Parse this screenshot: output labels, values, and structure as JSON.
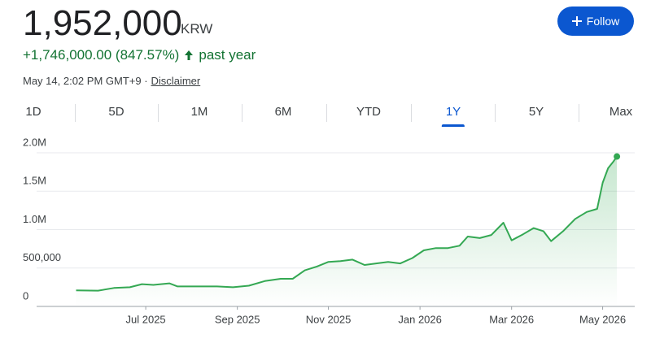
{
  "header": {
    "price": "1,952,000",
    "currency": "KRW",
    "change": "+1,746,000.00 (847.57%)",
    "period": "past year",
    "timestamp": "May 14, 2:02 PM GMT+9 ·",
    "disclaimer": "Disclaimer",
    "follow": "Follow"
  },
  "tabs": [
    "1D",
    "5D",
    "1M",
    "6M",
    "YTD",
    "1Y",
    "5Y",
    "Max"
  ],
  "selected_tab": "1Y",
  "chart_data": {
    "type": "line",
    "color": "#34a853",
    "x": [
      2025.373,
      2025.413,
      2025.442,
      2025.471,
      2025.493,
      2025.514,
      2025.543,
      2025.558,
      2025.601,
      2025.63,
      2025.659,
      2025.688,
      2025.717,
      2025.746,
      2025.768,
      2025.79,
      2025.812,
      2025.833,
      2025.855,
      2025.877,
      2025.899,
      2025.92,
      2025.942,
      2025.964,
      2025.986,
      2026.007,
      2026.029,
      2026.051,
      2026.072,
      2026.087,
      2026.109,
      2026.13,
      2026.152,
      2026.167,
      2026.188,
      2026.207,
      2026.225,
      2026.239,
      2026.261,
      2026.283,
      2026.304,
      2026.323,
      2026.333,
      2026.343,
      2026.352,
      2026.359
    ],
    "values": [
      210000,
      205000,
      240000,
      250000,
      290000,
      280000,
      300000,
      260000,
      260000,
      260000,
      250000,
      270000,
      330000,
      360000,
      360000,
      470000,
      520000,
      580000,
      590000,
      610000,
      540000,
      560000,
      580000,
      560000,
      630000,
      730000,
      760000,
      760000,
      790000,
      910000,
      890000,
      930000,
      1090000,
      860000,
      940000,
      1020000,
      980000,
      850000,
      980000,
      1140000,
      1230000,
      1270000,
      1610000,
      1800000,
      1880000,
      1952000
    ],
    "xlim": [
      2025.35,
      2026.39
    ],
    "xticks": [
      {
        "value": 2025.5,
        "label": "Jul 2025"
      },
      {
        "value": 2025.667,
        "label": "Sep 2025"
      },
      {
        "value": 2025.833,
        "label": "Nov 2025"
      },
      {
        "value": 2026.0,
        "label": "Jan 2026"
      },
      {
        "value": 2026.167,
        "label": "Mar 2026"
      },
      {
        "value": 2026.333,
        "label": "May 2026"
      }
    ],
    "ylim": [
      0,
      2000000
    ],
    "yticks": [
      0,
      {
        "value": 500000,
        "label": "500,000"
      },
      {
        "value": 1000000,
        "label": "1.0M"
      },
      {
        "value": 1500000,
        "label": "1.5M"
      },
      {
        "value": 2000000,
        "label": "2.0M"
      }
    ],
    "grid": true
  }
}
